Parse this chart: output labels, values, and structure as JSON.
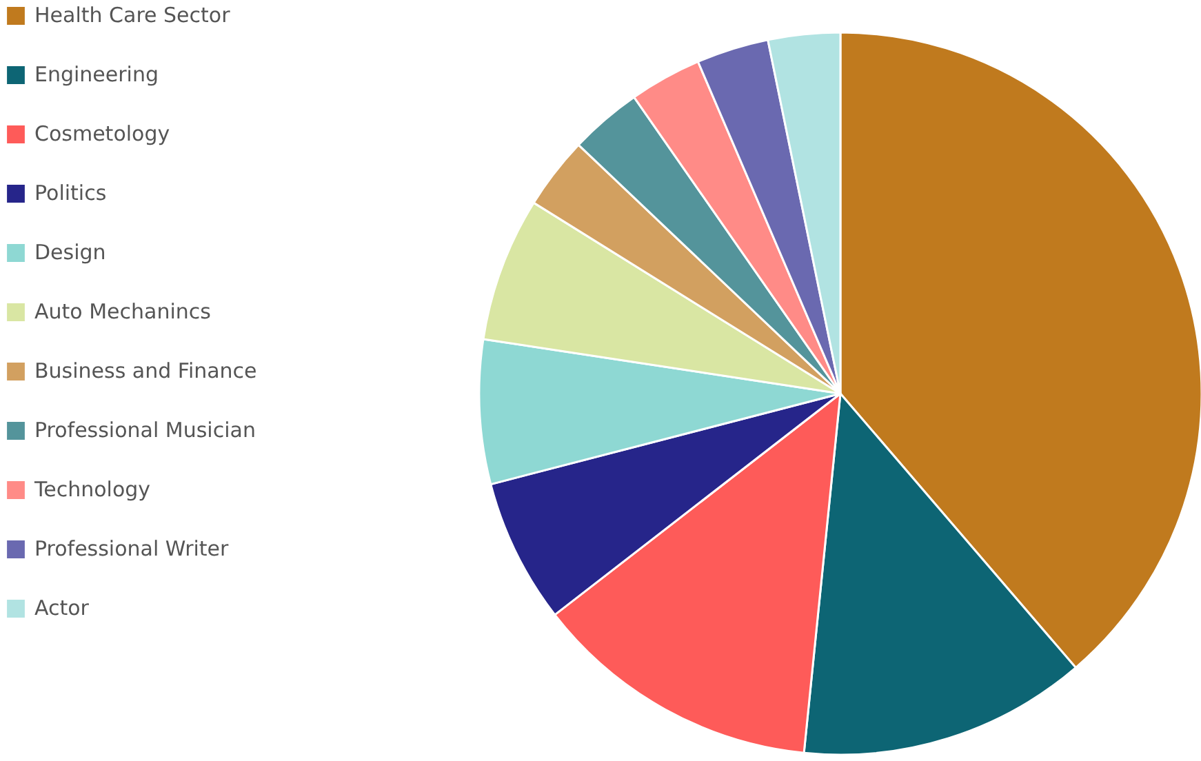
{
  "chart_data": {
    "type": "pie",
    "legend": "top left",
    "categories": [
      "Health Care Sector",
      "Engineering",
      "Cosmetology",
      "Politics",
      "Design",
      "Auto Mechanincs",
      "Business and Finance",
      "Professional Musician",
      "Technology",
      "Professional Writer",
      "Actor"
    ],
    "values": [
      38.71,
      12.9,
      12.9,
      6.45,
      6.45,
      6.45,
      3.23,
      3.23,
      3.23,
      3.23,
      3.22
    ],
    "colors": [
      "#c07a1e",
      "#0d6574",
      "#fe5b59",
      "#26258a",
      "#8ed8d3",
      "#d9e6a3",
      "#d2a060",
      "#54949b",
      "#ff8b87",
      "#6a69b0",
      "#b1e3e2"
    ]
  }
}
